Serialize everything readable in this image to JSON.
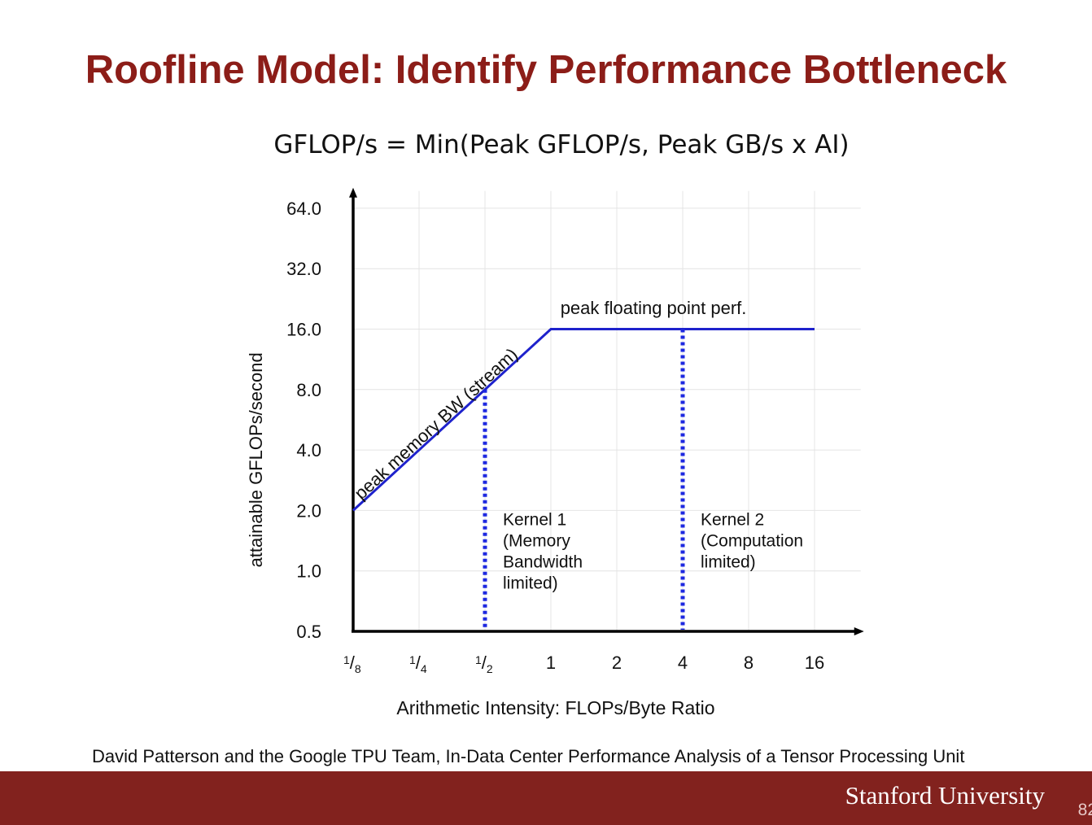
{
  "slide": {
    "title": "Roofline Model: Identify Performance Bottleneck",
    "formula": "GFLOP/s = Min(Peak GFLOP/s, Peak GB/s x AI)",
    "citation": "David Patterson and the Google TPU Team, In-Data Center Performance Analysis of a Tensor Processing Unit",
    "footer_org": "Stanford University",
    "page_number": "82",
    "title_color": "#8c1d18",
    "footer_color": "#82221e"
  },
  "chart_data": {
    "type": "line",
    "xlabel": "Arithmetic Intensity: FLOPs/Byte Ratio",
    "ylabel": "attainable GFLOPs/second",
    "x_scale": "log2",
    "y_scale": "log2",
    "x_ticks": [
      {
        "value": 0.125,
        "num": "1",
        "den": "8"
      },
      {
        "value": 0.25,
        "num": "1",
        "den": "4"
      },
      {
        "value": 0.5,
        "num": "1",
        "den": "2"
      },
      {
        "value": 1,
        "label": "1"
      },
      {
        "value": 2,
        "label": "2"
      },
      {
        "value": 4,
        "label": "4"
      },
      {
        "value": 8,
        "label": "8"
      },
      {
        "value": 16,
        "label": "16"
      }
    ],
    "y_ticks": [
      {
        "value": 0.5,
        "label": "0.5"
      },
      {
        "value": 1,
        "label": "1.0"
      },
      {
        "value": 2,
        "label": "2.0"
      },
      {
        "value": 4,
        "label": "4.0"
      },
      {
        "value": 8,
        "label": "8.0"
      },
      {
        "value": 16,
        "label": "16.0"
      },
      {
        "value": 32,
        "label": "32.0"
      },
      {
        "value": 64,
        "label": "64.0"
      }
    ],
    "xlim": [
      0.125,
      26
    ],
    "ylim": [
      0.5,
      78
    ],
    "grid": true,
    "series": [
      {
        "x": [
          0.125,
          1,
          16
        ],
        "y": [
          2,
          16,
          16
        ],
        "color": "#1e22cc"
      }
    ],
    "annotations": [
      {
        "text": "peak memory BW (stream)",
        "x": 0.125,
        "y": 2.2,
        "rotate": "along-slope"
      },
      {
        "text": "peak floating point  perf.",
        "x": 1.05,
        "y": 18
      }
    ],
    "kernels": [
      {
        "x": 0.5,
        "y_top": 8,
        "color": "#1d28e0",
        "lines": [
          "Kernel 1",
          "(Memory",
          "Bandwidth",
          "limited)"
        ]
      },
      {
        "x": 4,
        "y_top": 16,
        "color": "#1d28e0",
        "lines": [
          "Kernel 2",
          "(Computation",
          "limited)"
        ]
      }
    ]
  }
}
